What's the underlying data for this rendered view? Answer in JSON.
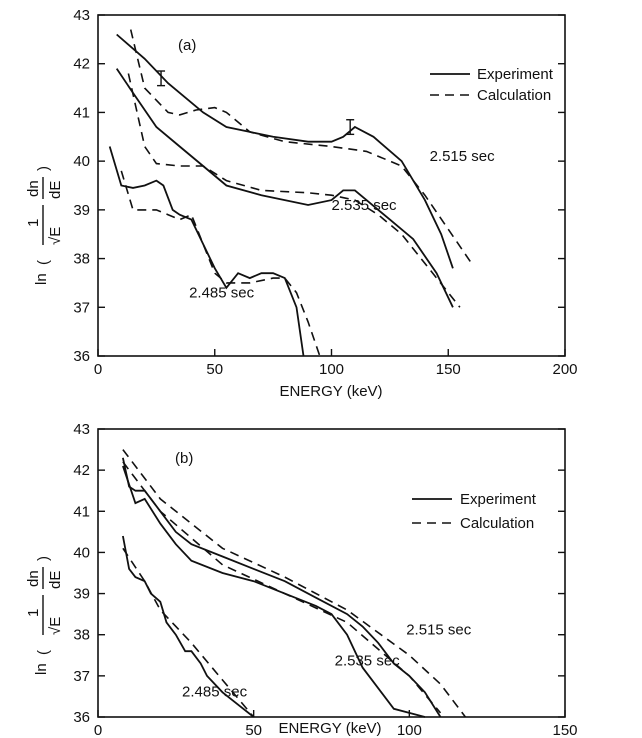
{
  "chart_data": [
    {
      "panel_label": "(a)",
      "type": "line",
      "xlabel": "ENERGY (keV)",
      "ylabel_parts": {
        "ln": "ln",
        "bar": "(",
        "one": "1",
        "sqrt": "√E",
        "dn": "dn",
        "dE": "dE",
        "close": ")"
      },
      "xlim": [
        0,
        200
      ],
      "ylim": [
        36,
        43
      ],
      "xticks": [
        0,
        50,
        100,
        150,
        200
      ],
      "yticks": [
        36,
        37,
        38,
        39,
        40,
        41,
        42,
        43
      ],
      "legend": {
        "position": "top-right",
        "entries": [
          {
            "label": "Experiment",
            "style": "solid"
          },
          {
            "label": "Calculation",
            "style": "dashed"
          }
        ]
      },
      "series": [
        {
          "label": "2.515 sec",
          "style": "solid",
          "x": [
            8,
            20,
            30,
            45,
            55,
            65,
            75,
            90,
            100,
            105,
            110,
            118,
            130,
            140,
            147,
            152
          ],
          "y": [
            42.6,
            42.1,
            41.6,
            41.0,
            40.7,
            40.6,
            40.5,
            40.4,
            40.4,
            40.5,
            40.7,
            40.5,
            40.0,
            39.2,
            38.5,
            37.8
          ]
        },
        {
          "label": "2.515 sec",
          "style": "dashed",
          "x": [
            14,
            20,
            30,
            35,
            42,
            50,
            55,
            65,
            80,
            100,
            115,
            130,
            140,
            150,
            160
          ],
          "y": [
            42.7,
            41.5,
            41.0,
            40.95,
            41.05,
            41.1,
            41.0,
            40.6,
            40.4,
            40.3,
            40.2,
            39.9,
            39.3,
            38.6,
            37.9
          ]
        },
        {
          "label": "2.535 sec",
          "style": "solid",
          "x": [
            8,
            15,
            25,
            35,
            45,
            55,
            70,
            90,
            100,
            105,
            110,
            115,
            125,
            135,
            145,
            152
          ],
          "y": [
            41.9,
            41.4,
            40.7,
            40.3,
            39.9,
            39.5,
            39.3,
            39.1,
            39.2,
            39.4,
            39.4,
            39.2,
            38.8,
            38.4,
            37.7,
            37.0
          ]
        },
        {
          "label": "2.535 sec",
          "style": "dashed",
          "x": [
            13,
            20,
            25,
            35,
            45,
            55,
            70,
            90,
            100,
            110,
            120,
            130,
            140,
            150,
            155
          ],
          "y": [
            41.8,
            40.3,
            39.95,
            39.9,
            39.9,
            39.6,
            39.4,
            39.35,
            39.3,
            39.2,
            38.9,
            38.5,
            37.9,
            37.3,
            37.0
          ]
        },
        {
          "label": "2.485 sec",
          "style": "solid",
          "x": [
            5,
            10,
            15,
            20,
            25,
            28,
            32,
            35,
            40,
            45,
            50,
            55,
            60,
            65,
            70,
            75,
            80,
            85,
            88
          ],
          "y": [
            40.3,
            39.5,
            39.45,
            39.5,
            39.6,
            39.5,
            39.0,
            38.9,
            38.8,
            38.3,
            37.8,
            37.4,
            37.7,
            37.6,
            37.7,
            37.7,
            37.6,
            37.0,
            36.0
          ]
        },
        {
          "label": "2.485 sec",
          "style": "dashed",
          "x": [
            10,
            15,
            20,
            25,
            30,
            35,
            40,
            45,
            50,
            55,
            65,
            75,
            80,
            85,
            90,
            95
          ],
          "y": [
            39.8,
            39.0,
            39.0,
            39.0,
            38.9,
            38.8,
            38.9,
            38.3,
            37.7,
            37.5,
            37.5,
            37.6,
            37.6,
            37.3,
            36.7,
            36.0
          ]
        }
      ],
      "error_bars": [
        {
          "x": 27,
          "y": 41.7,
          "lo": 41.55,
          "hi": 41.85
        },
        {
          "x": 108,
          "y": 40.7,
          "lo": 40.55,
          "hi": 40.85
        }
      ],
      "annotations": [
        {
          "text": "2.515 sec",
          "x": 142,
          "y": 40.0
        },
        {
          "text": "2.535 sec",
          "x": 100,
          "y": 39.0
        },
        {
          "text": "2.485 sec",
          "x": 39,
          "y": 37.2
        }
      ]
    },
    {
      "panel_label": "(b)",
      "type": "line",
      "xlabel": "ENERGY (keV)",
      "ylabel_parts": {
        "ln": "ln",
        "bar": "(",
        "one": "1",
        "sqrt": "√E",
        "dn": "dn",
        "dE": "dE",
        "close": ")"
      },
      "xlim": [
        0,
        150
      ],
      "ylim": [
        36,
        43
      ],
      "xticks": [
        0,
        50,
        100,
        150
      ],
      "yticks": [
        36,
        37,
        38,
        39,
        40,
        41,
        42,
        43
      ],
      "legend": {
        "position": "top-right",
        "entries": [
          {
            "label": "Experiment",
            "style": "solid"
          },
          {
            "label": "Calculation",
            "style": "dashed"
          }
        ]
      },
      "series": [
        {
          "label": "2.515 sec",
          "style": "solid",
          "x": [
            8,
            10,
            12,
            15,
            20,
            25,
            30,
            40,
            50,
            60,
            70,
            80,
            85,
            90,
            95,
            100,
            105,
            110
          ],
          "y": [
            42.3,
            41.6,
            41.5,
            41.5,
            41.0,
            40.5,
            40.2,
            39.9,
            39.6,
            39.3,
            38.9,
            38.5,
            38.2,
            37.8,
            37.3,
            37.0,
            36.6,
            36.0
          ]
        },
        {
          "label": "2.535 sec",
          "style": "solid",
          "x": [
            8,
            12,
            15,
            20,
            25,
            30,
            40,
            50,
            60,
            70,
            75,
            80,
            85,
            90,
            95,
            100,
            105
          ],
          "y": [
            42.1,
            41.2,
            41.3,
            40.7,
            40.2,
            39.8,
            39.5,
            39.3,
            39.0,
            38.7,
            38.5,
            38.0,
            37.2,
            36.7,
            36.2,
            36.1,
            36.0
          ]
        },
        {
          "label": "2.515 sec",
          "style": "dashed",
          "x": [
            8,
            20,
            40,
            60,
            80,
            100,
            110,
            118
          ],
          "y": [
            42.5,
            41.3,
            40.1,
            39.4,
            38.6,
            37.5,
            36.8,
            36.0
          ]
        },
        {
          "label": "2.535 sec",
          "style": "dashed",
          "x": [
            8,
            20,
            40,
            60,
            80,
            100,
            110
          ],
          "y": [
            42.2,
            41.0,
            39.7,
            39.0,
            38.3,
            37.0,
            36.1
          ]
        },
        {
          "label": "2.485 sec",
          "style": "solid",
          "x": [
            8,
            10,
            12,
            15,
            17,
            20,
            22,
            25,
            28,
            30,
            33,
            35,
            40,
            45,
            50
          ],
          "y": [
            40.4,
            39.6,
            39.4,
            39.3,
            39.0,
            38.8,
            38.3,
            38.0,
            37.6,
            37.6,
            37.3,
            37.0,
            36.6,
            36.3,
            36.0
          ]
        },
        {
          "label": "2.485 sec",
          "style": "dashed",
          "x": [
            8,
            15,
            20,
            30,
            40,
            50
          ],
          "y": [
            40.1,
            39.3,
            38.6,
            37.8,
            36.9,
            36.0
          ]
        }
      ],
      "annotations": [
        {
          "text": "2.515 sec",
          "x": 99,
          "y": 38.0
        },
        {
          "text": "2.535 sec",
          "x": 76,
          "y": 37.25
        },
        {
          "text": "2.485 sec",
          "x": 27,
          "y": 36.5
        }
      ]
    }
  ]
}
